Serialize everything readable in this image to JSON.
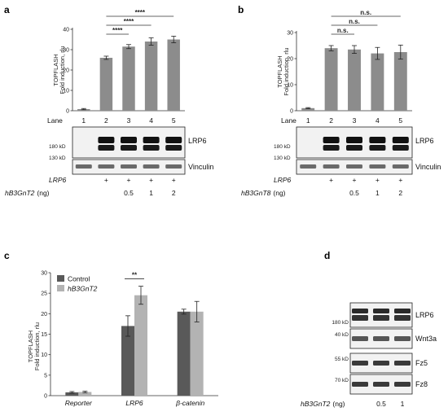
{
  "panels": {
    "a": {
      "letter": "a"
    },
    "b": {
      "letter": "b"
    },
    "c": {
      "letter": "c"
    },
    "d": {
      "letter": "d"
    }
  },
  "chart_data": [
    {
      "panel": "a",
      "type": "bar",
      "ylabel_line1": "TOPFLASH",
      "ylabel_line2": "Fold induction, rlu",
      "ylim": [
        0,
        40
      ],
      "yticks": [
        0,
        10,
        20,
        30,
        40
      ],
      "categories": [
        "1",
        "2",
        "3",
        "4",
        "5"
      ],
      "values": [
        0.8,
        26,
        31.5,
        34,
        35
      ],
      "errors": [
        0.3,
        0.8,
        1.0,
        1.8,
        1.6
      ],
      "color": "#8c8c8c",
      "significance": [
        {
          "from": "2",
          "to": "3",
          "label": "****"
        },
        {
          "from": "2",
          "to": "4",
          "label": "****"
        },
        {
          "from": "2",
          "to": "5",
          "label": "****"
        }
      ]
    },
    {
      "panel": "b",
      "type": "bar",
      "ylabel_line1": "TOPFLASH",
      "ylabel_line2": "Fold induction, rlu",
      "ylim": [
        0,
        30
      ],
      "yticks": [
        0,
        10,
        20,
        30
      ],
      "categories": [
        "1",
        "2",
        "3",
        "4",
        "5"
      ],
      "values": [
        1,
        24,
        23.5,
        22,
        22.5
      ],
      "errors": [
        0.2,
        1.0,
        1.5,
        2.3,
        2.7
      ],
      "color": "#8c8c8c",
      "significance": [
        {
          "from": "2",
          "to": "3",
          "label": "n.s."
        },
        {
          "from": "2",
          "to": "4",
          "label": "n.s."
        },
        {
          "from": "2",
          "to": "5",
          "label": "n.s."
        }
      ]
    },
    {
      "panel": "c",
      "type": "bar",
      "ylabel_line1": "TOPFLASH",
      "ylabel_line2": "Fold induction, rlu",
      "ylim": [
        0,
        30
      ],
      "yticks": [
        0,
        5,
        10,
        15,
        20,
        25,
        30
      ],
      "categories": [
        "Reporter",
        "LRP6",
        "β-catenin"
      ],
      "series": [
        {
          "name": "Control",
          "color": "#595959",
          "values": [
            0.8,
            17,
            20.5
          ],
          "errors": [
            0.2,
            2.5,
            0.6
          ]
        },
        {
          "name": "hB3GnT2",
          "color": "#b3b3b3",
          "values": [
            0.9,
            24.5,
            20.5
          ],
          "errors": [
            0.2,
            2.2,
            2.5
          ]
        }
      ],
      "legend": "top-left",
      "significance": [
        {
          "category": "LRP6",
          "label": "**"
        }
      ]
    }
  ],
  "blots_ab": {
    "lane_label": "Lane",
    "lanes": [
      "1",
      "2",
      "3",
      "4",
      "5"
    ],
    "lrp6_label": "LRP6",
    "vinculin_label": "Vinculin",
    "kd_180": "180 kD",
    "kd_130": "130 kD",
    "cond_lrp6_label": "LRP6",
    "cond_lrp6_marks": [
      "",
      "+",
      "+",
      "+",
      "+"
    ],
    "cond_amount_marks": [
      "",
      "",
      "0.5",
      "1",
      "2"
    ],
    "a_amount_label": "hB3GnT2",
    "b_amount_label": "hB3GnT8",
    "unit_label": "(ng)"
  },
  "blot_d": {
    "rows": [
      {
        "kd": "180 kD",
        "label": "LRP6"
      },
      {
        "kd": "40 kD",
        "label": "Wnt3a"
      },
      {
        "kd": "55 kD",
        "label": "Fz5"
      },
      {
        "kd": "70 kD",
        "label": "Fz8"
      }
    ],
    "cond_label": "hB3GnT2",
    "unit_label": "(ng)",
    "lanes": [
      "",
      "0.5",
      "1"
    ]
  }
}
